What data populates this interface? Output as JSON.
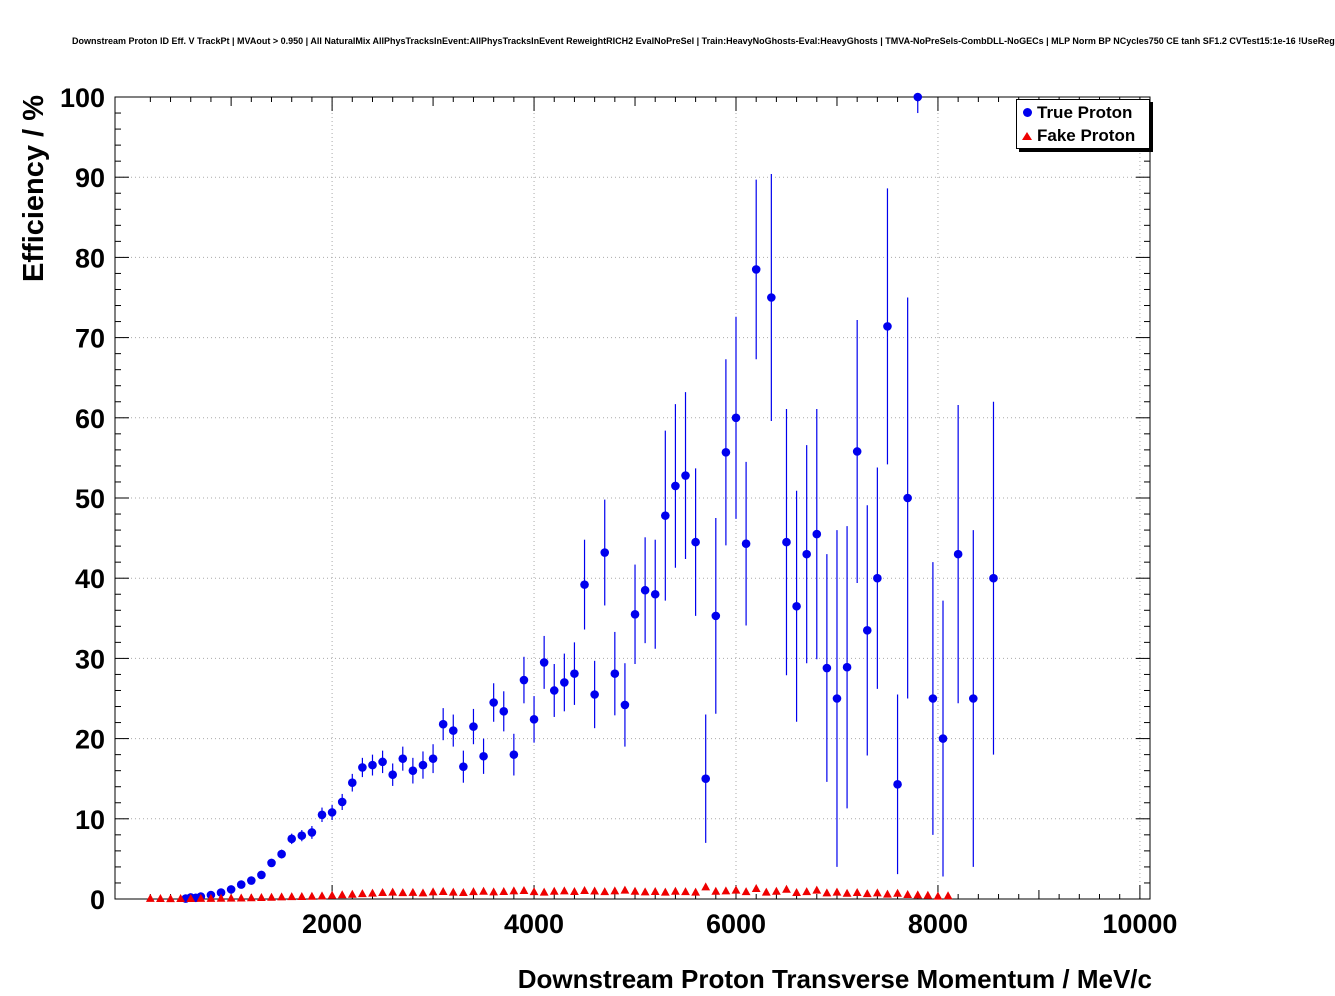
{
  "chart_data": {
    "type": "scatter",
    "title": "Downstream Proton ID Eff. V TrackPt | MVAout > 0.950 | All NaturalMix AllPhysTracksInEvent:AllPhysTracksInEvent ReweightRICH2 EvalNoPreSel | Train:HeavyNoGhosts-Eval:HeavyGhosts | TMVA-NoPreSels-CombDLL-NoGECs | MLP Norm BP NCycles750 CE tanh SF1.2 CVTest15:1e-16 !UseReg",
    "xlabel": "Downstream Proton Transverse Momentum / MeV/c",
    "ylabel": "Efficiency / %",
    "xlim": [
      -150,
      10100
    ],
    "ylim": [
      0,
      100
    ],
    "x_ticks": [
      2000,
      4000,
      6000,
      8000,
      10000
    ],
    "y_ticks": [
      0,
      10,
      20,
      30,
      40,
      50,
      60,
      70,
      80,
      90,
      100
    ],
    "x_minor_step": 200,
    "y_minor_step": 2,
    "grid": true,
    "legend": {
      "position": "top-right",
      "entries": [
        {
          "label": "True Proton",
          "marker": "circle",
          "color": "#0000ee"
        },
        {
          "label": "Fake Proton",
          "marker": "triangle",
          "color": "#ee0000"
        }
      ]
    },
    "colors": {
      "grid": "#aaaaaa",
      "frame": "#000000",
      "background": "#ffffff"
    },
    "series": [
      {
        "name": "True Proton",
        "marker": "circle",
        "color": "#0000ee",
        "points": [
          [
            550,
            0.05,
            0.05
          ],
          [
            600,
            0.2,
            0.15
          ],
          [
            650,
            0.15,
            0.1
          ],
          [
            700,
            0.3,
            0.15
          ],
          [
            800,
            0.5,
            0.2
          ],
          [
            900,
            0.8,
            0.2
          ],
          [
            1000,
            1.2,
            0.25
          ],
          [
            1100,
            1.8,
            0.3
          ],
          [
            1200,
            2.3,
            0.35
          ],
          [
            1300,
            3.0,
            0.4
          ],
          [
            1400,
            4.5,
            0.5
          ],
          [
            1500,
            5.6,
            0.55
          ],
          [
            1600,
            7.5,
            0.65
          ],
          [
            1700,
            7.9,
            0.7
          ],
          [
            1800,
            8.3,
            0.8
          ],
          [
            1900,
            10.5,
            0.9
          ],
          [
            2000,
            10.8,
            0.95
          ],
          [
            2100,
            12.1,
            1.0
          ],
          [
            2200,
            14.5,
            1.1
          ],
          [
            2300,
            16.4,
            1.2
          ],
          [
            2400,
            16.7,
            1.3
          ],
          [
            2500,
            17.1,
            1.4
          ],
          [
            2600,
            15.5,
            1.4
          ],
          [
            2700,
            17.5,
            1.5
          ],
          [
            2800,
            16.0,
            1.6
          ],
          [
            2900,
            16.7,
            1.7
          ],
          [
            3000,
            17.5,
            1.8
          ],
          [
            3100,
            21.8,
            2.0
          ],
          [
            3200,
            21.0,
            2.0
          ],
          [
            3300,
            16.5,
            2.0
          ],
          [
            3400,
            21.5,
            2.2
          ],
          [
            3500,
            17.8,
            2.2
          ],
          [
            3600,
            24.5,
            2.4
          ],
          [
            3700,
            23.4,
            2.5
          ],
          [
            3800,
            18.0,
            2.6
          ],
          [
            3900,
            27.3,
            2.9
          ],
          [
            4000,
            22.4,
            2.9
          ],
          [
            4100,
            29.5,
            3.3
          ],
          [
            4200,
            26.0,
            3.3
          ],
          [
            4300,
            27.0,
            3.6
          ],
          [
            4400,
            28.1,
            3.9
          ],
          [
            4500,
            39.2,
            5.6
          ],
          [
            4600,
            25.5,
            4.2
          ],
          [
            4700,
            43.2,
            6.6
          ],
          [
            4800,
            28.1,
            5.2
          ],
          [
            4900,
            24.2,
            5.2
          ],
          [
            5000,
            35.5,
            6.2
          ],
          [
            5100,
            38.5,
            6.6
          ],
          [
            5200,
            38.0,
            6.8
          ],
          [
            5300,
            47.8,
            10.6
          ],
          [
            5400,
            51.5,
            10.2
          ],
          [
            5500,
            52.8,
            10.4
          ],
          [
            5600,
            44.5,
            9.2
          ],
          [
            5700,
            15.0,
            8.0
          ],
          [
            5800,
            35.3,
            12.2
          ],
          [
            5900,
            55.7,
            11.6
          ],
          [
            6000,
            60.0,
            12.6
          ],
          [
            6100,
            44.3,
            10.2
          ],
          [
            6200,
            78.5,
            11.2
          ],
          [
            6350,
            75.0,
            15.4
          ],
          [
            6500,
            44.5,
            16.6
          ],
          [
            6600,
            36.5,
            14.4
          ],
          [
            6700,
            43.0,
            13.6
          ],
          [
            6800,
            45.5,
            15.6
          ],
          [
            6900,
            28.8,
            14.2
          ],
          [
            7000,
            25.0,
            21.0
          ],
          [
            7100,
            28.9,
            17.6
          ],
          [
            7200,
            55.8,
            16.4
          ],
          [
            7300,
            33.5,
            15.6
          ],
          [
            7400,
            40.0,
            13.8
          ],
          [
            7500,
            71.4,
            17.2
          ],
          [
            7600,
            14.3,
            11.2
          ],
          [
            7700,
            50.0,
            25.0
          ],
          [
            7800,
            100.0,
            2.0
          ],
          [
            7950,
            25.0,
            17.0
          ],
          [
            8050,
            20.0,
            17.2
          ],
          [
            8200,
            43.0,
            18.6
          ],
          [
            8350,
            25.0,
            21.0
          ],
          [
            8550,
            40.0,
            22.0
          ]
        ]
      },
      {
        "name": "Fake Proton",
        "marker": "triangle",
        "color": "#ee0000",
        "points": [
          [
            200,
            0.06,
            0.06
          ],
          [
            300,
            0.05,
            0.05
          ],
          [
            400,
            0.04,
            0.04
          ],
          [
            500,
            0.05,
            0.05
          ],
          [
            600,
            0.05,
            0.05
          ],
          [
            700,
            0.06,
            0.05
          ],
          [
            800,
            0.07,
            0.05
          ],
          [
            900,
            0.08,
            0.06
          ],
          [
            1000,
            0.1,
            0.06
          ],
          [
            1100,
            0.12,
            0.07
          ],
          [
            1200,
            0.15,
            0.07
          ],
          [
            1300,
            0.18,
            0.08
          ],
          [
            1400,
            0.2,
            0.08
          ],
          [
            1500,
            0.25,
            0.09
          ],
          [
            1600,
            0.28,
            0.09
          ],
          [
            1700,
            0.3,
            0.1
          ],
          [
            1800,
            0.33,
            0.1
          ],
          [
            1900,
            0.38,
            0.1
          ],
          [
            2000,
            0.45,
            0.11
          ],
          [
            2100,
            0.52,
            0.11
          ],
          [
            2200,
            0.58,
            0.12
          ],
          [
            2300,
            0.65,
            0.12
          ],
          [
            2400,
            0.72,
            0.13
          ],
          [
            2500,
            0.8,
            0.13
          ],
          [
            2600,
            0.85,
            0.14
          ],
          [
            2700,
            0.78,
            0.13
          ],
          [
            2800,
            0.82,
            0.14
          ],
          [
            2900,
            0.75,
            0.13
          ],
          [
            3000,
            0.88,
            0.14
          ],
          [
            3100,
            0.92,
            0.15
          ],
          [
            3200,
            0.85,
            0.14
          ],
          [
            3300,
            0.8,
            0.14
          ],
          [
            3400,
            0.9,
            0.15
          ],
          [
            3500,
            0.95,
            0.15
          ],
          [
            3600,
            0.88,
            0.15
          ],
          [
            3700,
            0.92,
            0.15
          ],
          [
            3800,
            1.0,
            0.16
          ],
          [
            3900,
            1.05,
            0.16
          ],
          [
            4000,
            0.9,
            0.15
          ],
          [
            4100,
            0.85,
            0.15
          ],
          [
            4200,
            0.95,
            0.16
          ],
          [
            4300,
            1.0,
            0.16
          ],
          [
            4400,
            0.92,
            0.16
          ],
          [
            4500,
            1.05,
            0.17
          ],
          [
            4600,
            0.98,
            0.17
          ],
          [
            4700,
            0.9,
            0.16
          ],
          [
            4800,
            1.0,
            0.17
          ],
          [
            4900,
            1.1,
            0.18
          ],
          [
            5000,
            0.95,
            0.17
          ],
          [
            5100,
            0.88,
            0.17
          ],
          [
            5200,
            0.92,
            0.18
          ],
          [
            5300,
            0.85,
            0.17
          ],
          [
            5400,
            0.95,
            0.18
          ],
          [
            5500,
            0.9,
            0.18
          ],
          [
            5600,
            0.85,
            0.18
          ],
          [
            5700,
            1.5,
            0.25
          ],
          [
            5800,
            0.95,
            0.19
          ],
          [
            5900,
            1.0,
            0.2
          ],
          [
            6000,
            1.1,
            0.21
          ],
          [
            6100,
            0.9,
            0.2
          ],
          [
            6200,
            1.3,
            0.24
          ],
          [
            6300,
            0.85,
            0.2
          ],
          [
            6400,
            0.95,
            0.21
          ],
          [
            6500,
            1.2,
            0.24
          ],
          [
            6600,
            0.8,
            0.2
          ],
          [
            6700,
            0.9,
            0.21
          ],
          [
            6800,
            1.1,
            0.24
          ],
          [
            6900,
            0.75,
            0.21
          ],
          [
            7000,
            0.85,
            0.22
          ],
          [
            7100,
            0.7,
            0.21
          ],
          [
            7200,
            0.8,
            0.23
          ],
          [
            7300,
            0.65,
            0.21
          ],
          [
            7400,
            0.75,
            0.23
          ],
          [
            7500,
            0.6,
            0.21
          ],
          [
            7600,
            0.7,
            0.23
          ],
          [
            7700,
            0.55,
            0.21
          ],
          [
            7800,
            0.5,
            0.21
          ],
          [
            7900,
            0.45,
            0.2
          ],
          [
            8000,
            0.35,
            0.18
          ],
          [
            8100,
            0.4,
            0.2
          ]
        ]
      }
    ]
  }
}
